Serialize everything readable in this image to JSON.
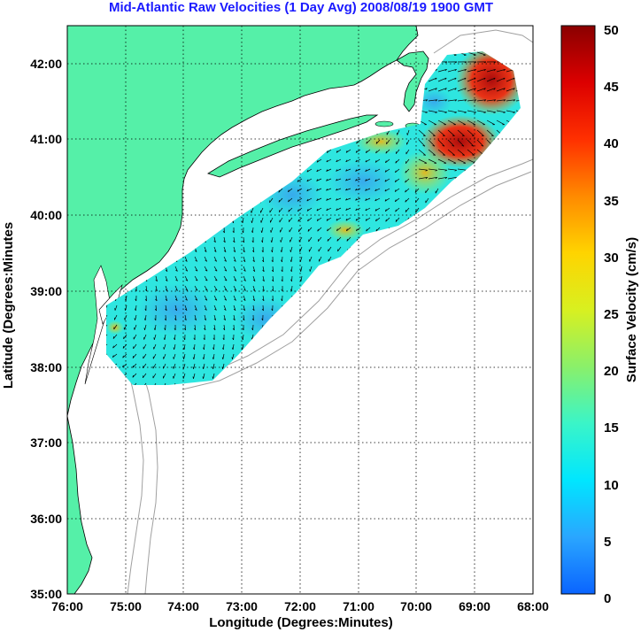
{
  "title": "Mid-Atlantic Raw Velocities (1 Day Avg) 2008/08/19 1900 GMT",
  "x_axis": {
    "label": "Longitude (Degrees:Minutes)",
    "ticks": [
      "76:00",
      "75:00",
      "74:00",
      "73:00",
      "72:00",
      "71:00",
      "70:00",
      "69:00",
      "68:00"
    ]
  },
  "y_axis": {
    "label": "Latitude (Degrees:Minutes",
    "ticks": [
      "35:00",
      "36:00",
      "37:00",
      "38:00",
      "39:00",
      "40:00",
      "41:00",
      "42:00"
    ]
  },
  "colorbar": {
    "label": "Surface Velocity (cm/s)",
    "ticks": [
      "0",
      "5",
      "10",
      "15",
      "20",
      "25",
      "30",
      "35",
      "40",
      "45",
      "50"
    ],
    "range": [
      0,
      50
    ]
  },
  "colors": {
    "land": "#55f0a8",
    "title": "#1a1aff",
    "bathymetry": "#a0a0a0",
    "coast": "#000000"
  },
  "chart_data": {
    "type": "heatmap",
    "title": "Mid-Atlantic Raw Velocities (1 Day Avg) 2008/08/19 1900 GMT",
    "xlabel": "Longitude (Degrees:Minutes)",
    "ylabel": "Latitude (Degrees:Minutes",
    "xlim": [
      -76,
      -68
    ],
    "ylim": [
      35,
      42.5
    ],
    "grid": true,
    "colorbar_label": "Surface Velocity (cm/s)",
    "clim": [
      0,
      50
    ]
  }
}
